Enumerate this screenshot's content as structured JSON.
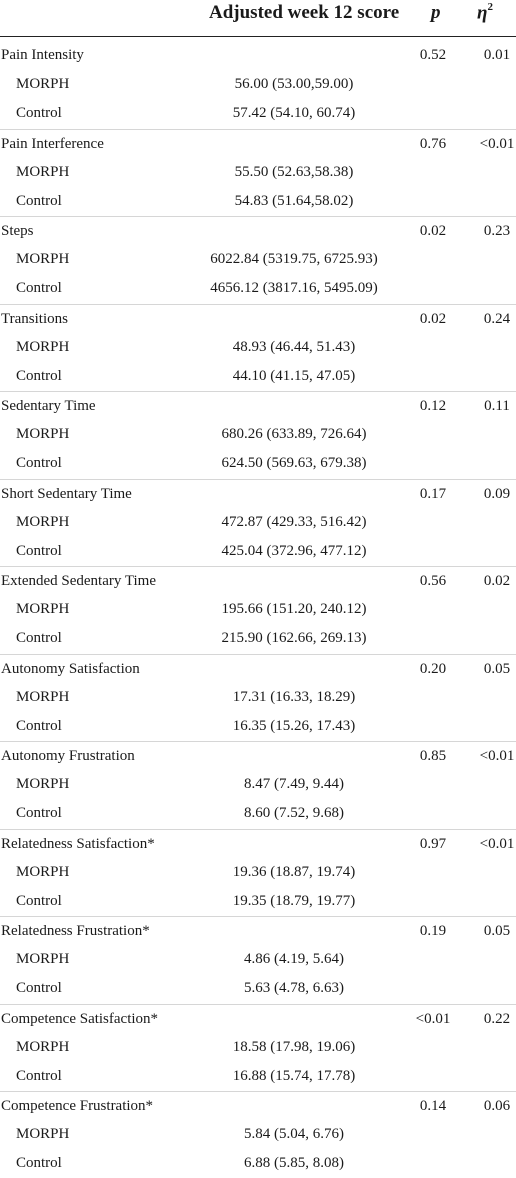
{
  "header": {
    "score": "Adjusted week 12 score",
    "p": "p",
    "eta": "η",
    "eta_sup": "2"
  },
  "rows": [
    {
      "label": "Pain Intensity",
      "p": "0.52",
      "eta": "0.01",
      "groups": [
        {
          "label": "MORPH",
          "score": "56.00 (53.00,59.00)"
        },
        {
          "label": "Control",
          "score": "57.42 (54.10, 60.74)"
        }
      ]
    },
    {
      "label": "Pain Interference",
      "p": "0.76",
      "eta": "<0.01",
      "groups": [
        {
          "label": "MORPH",
          "score": "55.50 (52.63,58.38)"
        },
        {
          "label": "Control",
          "score": "54.83 (51.64,58.02)"
        }
      ]
    },
    {
      "label": "Steps",
      "p": "0.02",
      "eta": "0.23",
      "groups": [
        {
          "label": "MORPH",
          "score": "6022.84 (5319.75, 6725.93)"
        },
        {
          "label": "Control",
          "score": "4656.12 (3817.16, 5495.09)"
        }
      ]
    },
    {
      "label": "Transitions",
      "p": "0.02",
      "eta": "0.24",
      "groups": [
        {
          "label": "MORPH",
          "score": "48.93 (46.44, 51.43)"
        },
        {
          "label": "Control",
          "score": "44.10 (41.15, 47.05)"
        }
      ]
    },
    {
      "label": "Sedentary Time",
      "p": "0.12",
      "eta": "0.11",
      "groups": [
        {
          "label": "MORPH",
          "score": "680.26 (633.89, 726.64)"
        },
        {
          "label": "Control",
          "score": "624.50 (569.63, 679.38)"
        }
      ]
    },
    {
      "label": "Short Sedentary Time",
      "p": "0.17",
      "eta": "0.09",
      "groups": [
        {
          "label": "MORPH",
          "score": "472.87 (429.33, 516.42)"
        },
        {
          "label": "Control",
          "score": "425.04 (372.96, 477.12)"
        }
      ]
    },
    {
      "label": "Extended Sedentary Time",
      "p": "0.56",
      "eta": "0.02",
      "groups": [
        {
          "label": "MORPH",
          "score": "195.66 (151.20, 240.12)"
        },
        {
          "label": "Control",
          "score": "215.90 (162.66, 269.13)"
        }
      ]
    },
    {
      "label": "Autonomy Satisfaction",
      "p": "0.20",
      "eta": "0.05",
      "groups": [
        {
          "label": "MORPH",
          "score": "17.31 (16.33, 18.29)"
        },
        {
          "label": "Control",
          "score": "16.35 (15.26, 17.43)"
        }
      ]
    },
    {
      "label": "Autonomy Frustration",
      "p": "0.85",
      "eta": "<0.01",
      "groups": [
        {
          "label": "MORPH",
          "score": "8.47 (7.49, 9.44)"
        },
        {
          "label": "Control",
          "score": "8.60 (7.52, 9.68)"
        }
      ]
    },
    {
      "label": "Relatedness Satisfaction*",
      "p": "0.97",
      "eta": "<0.01",
      "groups": [
        {
          "label": "MORPH",
          "score": "19.36 (18.87, 19.74)"
        },
        {
          "label": "Control",
          "score": "19.35 (18.79, 19.77)"
        }
      ]
    },
    {
      "label": "Relatedness Frustration*",
      "p": "0.19",
      "eta": "0.05",
      "groups": [
        {
          "label": "MORPH",
          "score": "4.86 (4.19, 5.64)"
        },
        {
          "label": "Control",
          "score": "5.63 (4.78, 6.63)"
        }
      ]
    },
    {
      "label": "Competence Satisfaction*",
      "p": "<0.01",
      "eta": "0.22",
      "groups": [
        {
          "label": "MORPH",
          "score": "18.58 (17.98, 19.06)"
        },
        {
          "label": "Control",
          "score": "16.88 (15.74, 17.78)"
        }
      ]
    },
    {
      "label": "Competence Frustration*",
      "p": "0.14",
      "eta": "0.06",
      "groups": [
        {
          "label": "MORPH",
          "score": "5.84 (5.04, 6.76)"
        },
        {
          "label": "Control",
          "score": "6.88 (5.85, 8.08)"
        }
      ]
    }
  ]
}
